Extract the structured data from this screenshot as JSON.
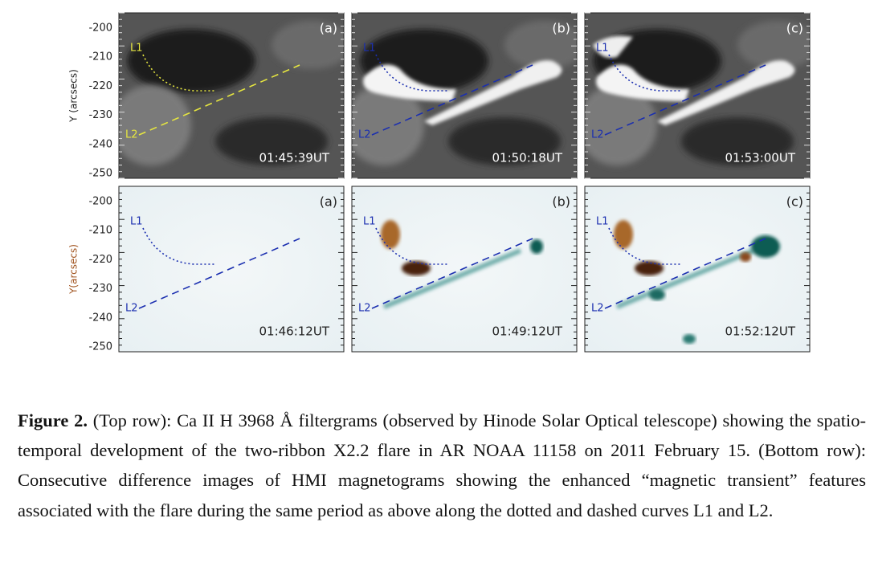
{
  "figure": {
    "rows": [
      {
        "axis_label": "Y (arcsecs)",
        "yticks": [
          "-200",
          "-210",
          "-220",
          "-230",
          "-240",
          "-250"
        ],
        "panels": [
          {
            "label": "(a)",
            "time": "01:45:39UT",
            "curves": [
              "L1",
              "L2"
            ]
          },
          {
            "label": "(b)",
            "time": "01:50:18UT",
            "curves": [
              "L1",
              "L2"
            ]
          },
          {
            "label": "(c)",
            "time": "01:53:00UT",
            "curves": [
              "L1",
              "L2"
            ]
          }
        ]
      },
      {
        "axis_label": "Y(arcsecs)",
        "yticks": [
          "-200",
          "-210",
          "-220",
          "-230",
          "-240",
          "-250"
        ],
        "panels": [
          {
            "label": "(a)",
            "time": "01:46:12UT",
            "curves": [
              "L1",
              "L2"
            ]
          },
          {
            "label": "(b)",
            "time": "01:49:12UT",
            "curves": [
              "L1",
              "L2"
            ]
          },
          {
            "label": "(c)",
            "time": "01:52:12UT",
            "curves": [
              "L1",
              "L2"
            ]
          }
        ]
      }
    ]
  },
  "caption": {
    "label": "Figure 2.",
    "text": "(Top row): Ca II H 3968 Å  filtergrams (observed by Hinode Solar Optical telescope) showing the spatio-temporal development of the two-ribbon X2.2 flare in AR NOAA 11158 on 2011 February 15.  (Bottom row): Consecutive difference images of HMI magnetograms showing the enhanced “magnetic transient” features associated with the flare during the same period as above along the dotted and dashed curves L1 and L2."
  }
}
